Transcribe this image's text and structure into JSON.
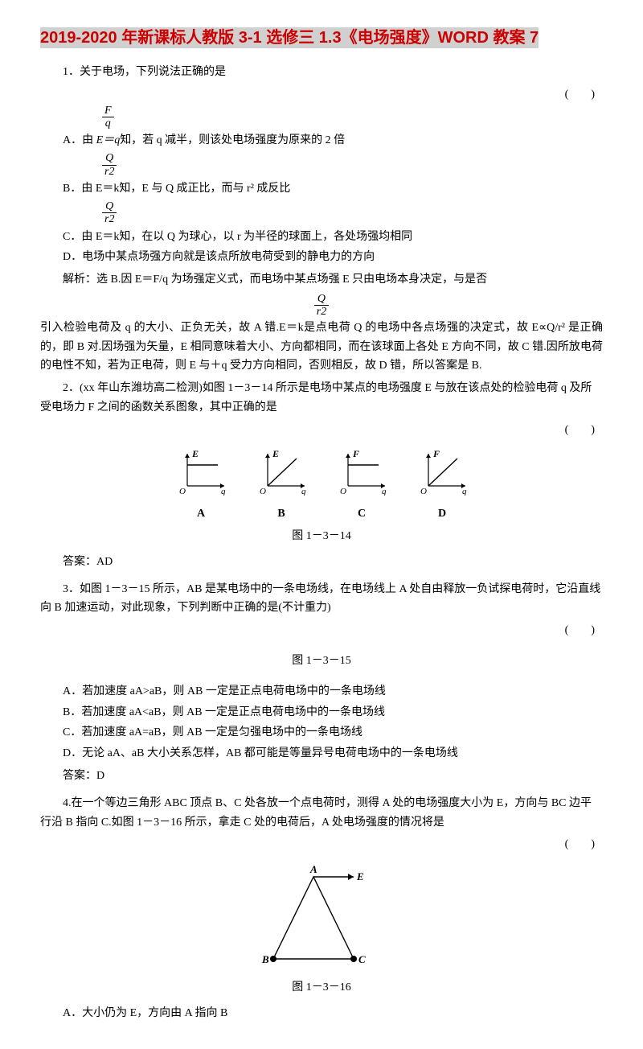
{
  "title": "2019-2020 年新课标人教版 3-1 选修三 1.3《电场强度》WORD 教案 7",
  "q1": {
    "stem": "1．关于电场，下列说法正确的是",
    "paren": "(　　)",
    "optA_pre": "A．由 ",
    "optA_post": "知，若 q 减半，则该处电场强度为原来的 2 倍",
    "fracA_num": "F",
    "fracA_den": "q",
    "fracA_mid": "E＝",
    "optB_pre": "B．由 E＝k",
    "fracB_num": "Q",
    "fracB_den": "r2",
    "optB_post": "知，E 与 Q 成正比，而与 r² 成反比",
    "optC_pre": "C．由 E＝k",
    "fracC_num": "Q",
    "fracC_den": "r2",
    "optC_post": "知，在以 Q 为球心，以 r 为半径的球面上，各处场强均相同",
    "optD": "D．电场中某点场强方向就是该点所放电荷受到的静电力的方向",
    "expl1": "解析：选 B.因 E＝F/q 为场强定义式，而电场中某点场强 E 只由电场本身决定，与是否",
    "fracE_num": "Q",
    "fracE_den": "r2",
    "expl2a": "引入检验电荷及 q 的大小、正负无关，故 A 错.E＝k",
    "expl2b": "是点电荷 Q 的电场中各点场强的决定式，故 E∝Q/r² 是正确的，即 B 对.因场强为矢量，E 相同意味着大小、方向都相同，而在该球面上各处 E 方向不同，故 C 错.因所放电荷的电性不知，若为正电荷，则 E 与＋q 受力方向相同，否则相反，故 D 错，所以答案是 B."
  },
  "q2": {
    "stem": "2．(xx 年山东潍坊高二检测)如图 1－3－14 所示是电场中某点的电场强度 E 与放在该点处的检验电荷 q 及所受电场力 F 之间的函数关系图象，其中正确的是",
    "paren": "(　　)",
    "figs": {
      "labels": [
        "A",
        "B",
        "C",
        "D"
      ],
      "y_axes": [
        "E",
        "E",
        "F",
        "F"
      ],
      "x_axis": "q",
      "types": [
        "hline",
        "diag",
        "hline",
        "diag"
      ],
      "axis_color": "#000000",
      "line_color": "#000000",
      "fig_width": 70,
      "fig_height": 60
    },
    "figcaption": "图 1－3－14",
    "answer": "答案：AD"
  },
  "q3": {
    "stem": "3．如图 1－3－15 所示，AB 是某电场中的一条电场线，在电场线上 A 处自由释放一负试探电荷时，它沿直线向 B 加速运动，对此现象，下列判断中正确的是(不计重力)",
    "paren": "(　　)",
    "figcaption": "图 1－3－15",
    "optA": "A．若加速度 aA>aB，则 AB 一定是正点电荷电场中的一条电场线",
    "optB": "B．若加速度 aA<aB，则 AB 一定是正点电荷电场中的一条电场线",
    "optC": "C．若加速度 aA=aB，则 AB 一定是匀强电场中的一条电场线",
    "optD": "D．无论 aA、aB 大小关系怎样，AB 都可能是等量异号电荷电场中的一条电场线",
    "answer": "答案：D"
  },
  "q4": {
    "stem": "4.在一个等边三角形 ABC 顶点 B、C 处各放一个点电荷时，测得 A 处的电场强度大小为 E，方向与 BC 边平行沿 B 指向 C.如图 1－3－16 所示，拿走 C 处的电荷后，A 处电场强度的情况将是",
    "paren": "(　　)",
    "fig": {
      "labels": {
        "A": "A",
        "B": "B",
        "C": "C",
        "E": "E"
      },
      "node_color": "#000000",
      "line_color": "#000000",
      "width": 170,
      "height": 140
    },
    "figcaption": "图 1－3－16",
    "optA": "A．大小仍为 E，方向由 A 指向 B"
  }
}
